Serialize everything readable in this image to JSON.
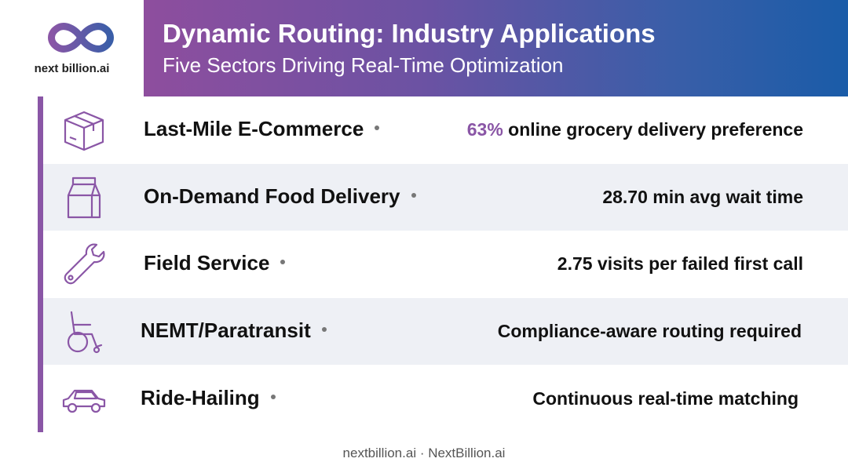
{
  "logo": {
    "text": "next billion.ai",
    "icon": "infinity-logo-icon",
    "colors": [
      "#8a56a6",
      "#3a5ea8"
    ]
  },
  "header": {
    "title": "Dynamic Routing: Industry Applications",
    "subtitle": "Five Sectors Driving Real-Time Optimization",
    "gradient": [
      "#8e4e9e",
      "#1a5ca8"
    ]
  },
  "accent_color": "#8a56a6",
  "rows": [
    {
      "icon": "package-box-icon",
      "sector": "Last-Mile E-Commerce",
      "highlight": "63%",
      "stat": " online grocery delivery preference"
    },
    {
      "icon": "food-bag-icon",
      "sector": "On-Demand Food Delivery",
      "highlight": "",
      "stat": "28.70 min avg wait time"
    },
    {
      "icon": "wrench-icon",
      "sector": "Field Service",
      "highlight": "",
      "stat": "2.75 visits per failed first call"
    },
    {
      "icon": "wheelchair-icon",
      "sector": "NEMT/Paratransit",
      "highlight": "",
      "stat": "Compliance-aware routing required"
    },
    {
      "icon": "car-icon",
      "sector": "Ride-Hailing",
      "highlight": "",
      "stat": "Continuous real-time matching"
    }
  ],
  "footer": {
    "text": "nextbillion.ai · NextBillion.ai"
  }
}
